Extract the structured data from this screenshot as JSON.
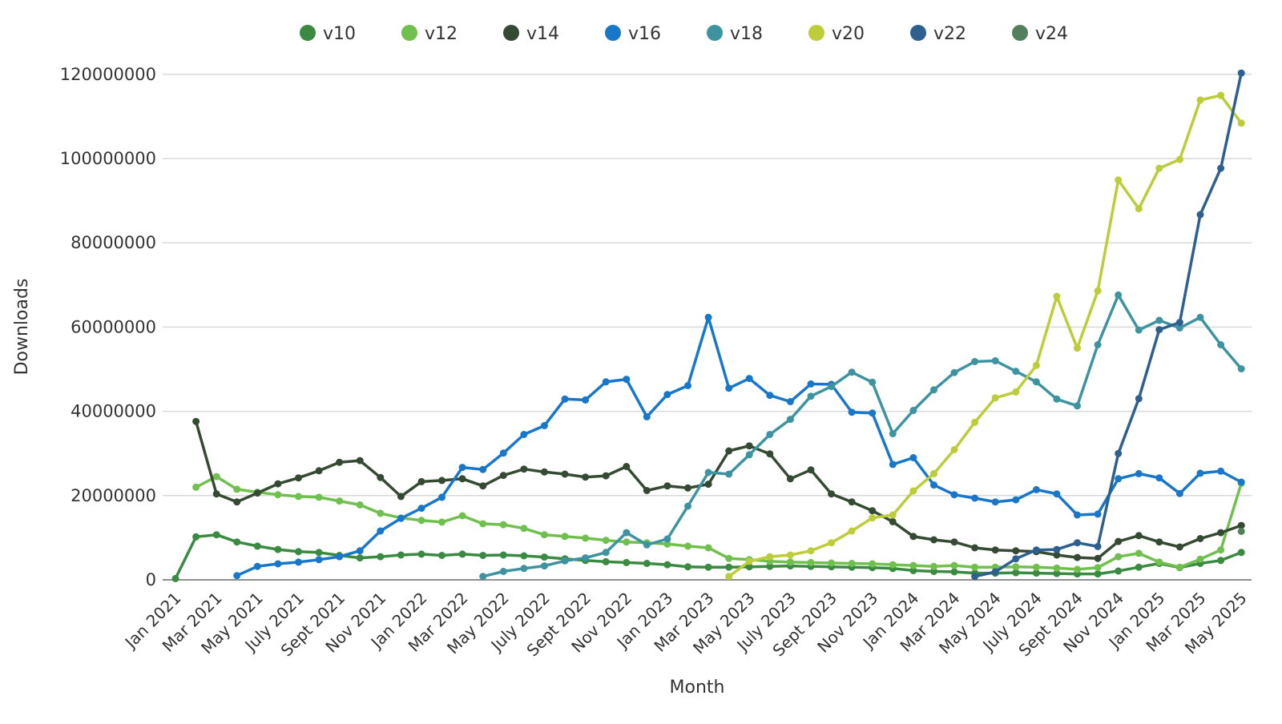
{
  "chart_data": {
    "type": "line",
    "title": "",
    "xlabel": "Month",
    "ylabel": "Downloads",
    "values_unit": "millions_of_downloads",
    "ylim_millions": [
      0,
      120
    ],
    "grid": "horizontal-only",
    "legend_position": "top-center",
    "y_tick_labels": [
      "0",
      "20000000",
      "40000000",
      "60000000",
      "80000000",
      "100000000",
      "120000000"
    ],
    "y_tick_values_millions": [
      0,
      20,
      40,
      60,
      80,
      100,
      120
    ],
    "x_tick_labels": [
      "Jan 2021",
      "Mar 2021",
      "May 2021",
      "July 2021",
      "Sept 2021",
      "Nov 2021",
      "Jan 2022",
      "Mar 2022",
      "May 2022",
      "July 2022",
      "Sept 2022",
      "Nov 2022",
      "Jan 2023",
      "Mar 2023",
      "May 2023",
      "July 2023",
      "Sept 2023",
      "Nov 2023",
      "Jan 2024",
      "Mar 2024",
      "May 2024",
      "July 2024",
      "Sept 2024",
      "Nov 2024",
      "Jan 2025",
      "Mar 2025",
      "May 2025"
    ],
    "months": [
      "Jan 2021",
      "Feb 2021",
      "Mar 2021",
      "Apr 2021",
      "May 2021",
      "Jun 2021",
      "July 2021",
      "Aug 2021",
      "Sept 2021",
      "Oct 2021",
      "Nov 2021",
      "Dec 2021",
      "Jan 2022",
      "Feb 2022",
      "Mar 2022",
      "Apr 2022",
      "May 2022",
      "Jun 2022",
      "July 2022",
      "Aug 2022",
      "Sept 2022",
      "Oct 2022",
      "Nov 2022",
      "Dec 2022",
      "Jan 2023",
      "Feb 2023",
      "Mar 2023",
      "Apr 2023",
      "May 2023",
      "Jun 2023",
      "July 2023",
      "Aug 2023",
      "Sept 2023",
      "Oct 2023",
      "Nov 2023",
      "Dec 2023",
      "Jan 2024",
      "Feb 2024",
      "Mar 2024",
      "Apr 2024",
      "May 2024",
      "Jun 2024",
      "July 2024",
      "Aug 2024",
      "Sept 2024",
      "Oct 2024",
      "Nov 2024",
      "Dec 2024",
      "Jan 2025",
      "Feb 2025",
      "Mar 2025",
      "Apr 2025",
      "May 2025"
    ],
    "series": [
      {
        "name": "v10",
        "color": "#3a8a41",
        "values": [
          0.3,
          10.2,
          10.7,
          9.0,
          8.0,
          7.2,
          6.7,
          6.5,
          5.8,
          5.2,
          5.5,
          5.9,
          6.1,
          5.8,
          6.1,
          5.8,
          5.9,
          5.7,
          5.4,
          5.0,
          4.6,
          4.3,
          4.1,
          3.9,
          3.6,
          3.1,
          3.0,
          3.0,
          3.1,
          3.2,
          3.3,
          3.2,
          3.1,
          3.0,
          2.9,
          2.7,
          2.2,
          2.0,
          1.9,
          1.6,
          1.6,
          1.7,
          1.6,
          1.5,
          1.4,
          1.4,
          2.1,
          3.0,
          3.9,
          2.9,
          3.9,
          4.6,
          6.5
        ]
      },
      {
        "name": "v12",
        "color": "#70c04e",
        "values": [
          null,
          22.0,
          24.5,
          21.5,
          20.8,
          20.2,
          19.8,
          19.6,
          18.7,
          17.8,
          15.8,
          14.7,
          14.1,
          13.7,
          15.2,
          13.3,
          13.1,
          12.2,
          10.7,
          10.3,
          9.9,
          9.4,
          9.0,
          8.8,
          8.5,
          8.0,
          7.6,
          5.1,
          4.8,
          4.4,
          4.2,
          4.1,
          4.0,
          3.9,
          3.8,
          3.6,
          3.4,
          3.2,
          3.4,
          3.0,
          3.0,
          3.1,
          3.0,
          2.8,
          2.5,
          2.9,
          5.5,
          6.3,
          4.2,
          3.0,
          4.9,
          7.1,
          22.9
        ]
      },
      {
        "name": "v14",
        "color": "#354a32",
        "values": [
          null,
          37.6,
          20.4,
          18.5,
          20.6,
          22.8,
          24.2,
          25.9,
          27.9,
          28.3,
          24.3,
          19.8,
          23.3,
          23.6,
          24.0,
          22.3,
          24.8,
          26.3,
          25.6,
          25.1,
          24.4,
          24.7,
          26.9,
          21.2,
          22.3,
          21.8,
          22.7,
          30.6,
          31.8,
          29.9,
          24.0,
          26.1,
          20.4,
          18.5,
          16.4,
          13.8,
          10.3,
          9.5,
          9.0,
          7.6,
          7.1,
          6.9,
          6.7,
          5.9,
          5.3,
          5.1,
          9.1,
          10.5,
          9.0,
          7.8,
          9.8,
          11.2,
          12.9
        ]
      },
      {
        "name": "v16",
        "color": "#1877c9",
        "values": [
          null,
          null,
          null,
          1.0,
          3.2,
          3.8,
          4.2,
          4.8,
          5.5,
          6.9,
          11.6,
          14.6,
          17.0,
          19.6,
          26.7,
          26.2,
          30.1,
          34.5,
          36.6,
          42.9,
          42.7,
          47.0,
          47.6,
          38.7,
          44.0,
          46.1,
          62.3,
          45.5,
          47.8,
          43.8,
          42.3,
          46.5,
          46.4,
          39.8,
          39.6,
          27.4,
          29.0,
          22.5,
          20.2,
          19.4,
          18.5,
          19.0,
          21.4,
          20.4,
          15.4,
          15.6,
          24.0,
          25.2,
          24.2,
          20.5,
          25.3,
          25.8,
          23.2
        ]
      },
      {
        "name": "v18",
        "color": "#3e93a0",
        "values": [
          null,
          null,
          null,
          null,
          null,
          null,
          null,
          null,
          null,
          null,
          null,
          null,
          null,
          null,
          null,
          0.8,
          2.0,
          2.7,
          3.3,
          4.5,
          5.2,
          6.5,
          11.2,
          8.3,
          9.7,
          17.5,
          25.5,
          25.1,
          29.7,
          34.5,
          38.1,
          43.6,
          45.9,
          49.3,
          46.9,
          34.7,
          40.2,
          45.1,
          49.2,
          51.8,
          52.0,
          49.5,
          47.0,
          42.9,
          41.3,
          55.8,
          67.6,
          59.3,
          61.6,
          59.8,
          62.3,
          55.8,
          50.1
        ]
      },
      {
        "name": "v20",
        "color": "#bccd39",
        "values": [
          null,
          null,
          null,
          null,
          null,
          null,
          null,
          null,
          null,
          null,
          null,
          null,
          null,
          null,
          null,
          null,
          null,
          null,
          null,
          null,
          null,
          null,
          null,
          null,
          null,
          null,
          null,
          0.8,
          4.4,
          5.5,
          5.9,
          6.9,
          8.8,
          11.6,
          14.7,
          15.4,
          21.1,
          25.2,
          30.9,
          37.4,
          43.2,
          44.6,
          50.9,
          67.3,
          55.0,
          68.6,
          94.9,
          88.1,
          97.7,
          99.8,
          113.9,
          115.0,
          108.4
        ]
      },
      {
        "name": "v22",
        "color": "#2d608e",
        "values": [
          null,
          null,
          null,
          null,
          null,
          null,
          null,
          null,
          null,
          null,
          null,
          null,
          null,
          null,
          null,
          null,
          null,
          null,
          null,
          null,
          null,
          null,
          null,
          null,
          null,
          null,
          null,
          null,
          null,
          null,
          null,
          null,
          null,
          null,
          null,
          null,
          null,
          null,
          null,
          0.8,
          1.9,
          5.0,
          7.1,
          7.2,
          8.8,
          7.9,
          30.0,
          43.0,
          59.4,
          61.1,
          86.7,
          97.7,
          120.3
        ]
      },
      {
        "name": "v24",
        "color": "#53805c",
        "values": [
          null,
          null,
          null,
          null,
          null,
          null,
          null,
          null,
          null,
          null,
          null,
          null,
          null,
          null,
          null,
          null,
          null,
          null,
          null,
          null,
          null,
          null,
          null,
          null,
          null,
          null,
          null,
          null,
          null,
          null,
          null,
          null,
          null,
          null,
          null,
          null,
          null,
          null,
          null,
          null,
          null,
          null,
          null,
          null,
          null,
          null,
          null,
          null,
          null,
          null,
          null,
          null,
          11.5
        ]
      }
    ]
  }
}
